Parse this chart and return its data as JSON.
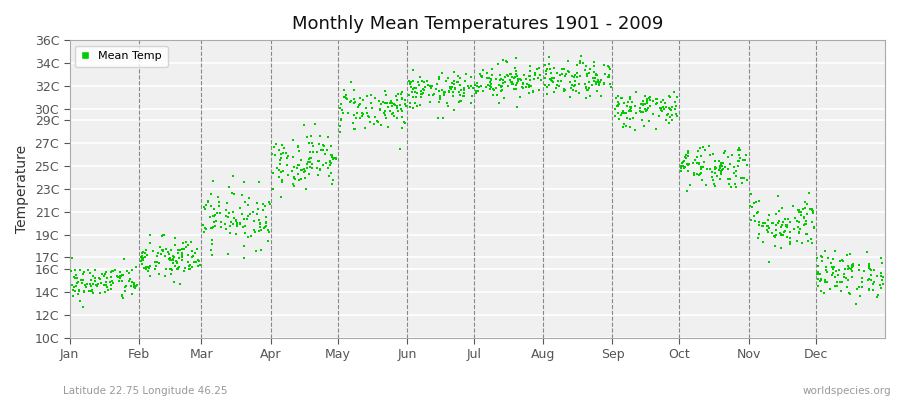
{
  "title": "Monthly Mean Temperatures 1901 - 2009",
  "ylabel": "Temperature",
  "xlabel_labels": [
    "Jan",
    "Feb",
    "Mar",
    "Apr",
    "May",
    "Jun",
    "Jul",
    "Aug",
    "Sep",
    "Oct",
    "Nov",
    "Dec"
  ],
  "ytick_labels": [
    "10C",
    "12C",
    "14C",
    "16C",
    "17C",
    "19C",
    "21C",
    "23C",
    "25C",
    "27C",
    "29C",
    "30C",
    "32C",
    "34C",
    "36C"
  ],
  "ytick_values": [
    10,
    12,
    14,
    16,
    17,
    19,
    21,
    23,
    25,
    27,
    29,
    30,
    32,
    34,
    36
  ],
  "ylim": [
    10,
    36
  ],
  "legend_label": "Mean Temp",
  "dot_color": "#00cc00",
  "bg_color": "#ffffff",
  "plot_bg_color": "#f0f0f0",
  "subtitle": "Latitude 22.75 Longitude 46.25",
  "watermark": "worldspecies.org",
  "monthly_means": [
    14.8,
    16.8,
    20.5,
    25.5,
    30.0,
    31.5,
    32.5,
    32.5,
    30.0,
    25.0,
    20.0,
    15.5
  ],
  "monthly_stds": [
    0.8,
    1.0,
    1.3,
    1.2,
    1.0,
    0.8,
    0.8,
    0.8,
    0.8,
    1.0,
    1.2,
    1.0
  ],
  "n_years": 109,
  "seed": 42,
  "days_in_month": [
    31,
    28,
    31,
    30,
    31,
    30,
    31,
    31,
    30,
    31,
    30,
    31
  ]
}
